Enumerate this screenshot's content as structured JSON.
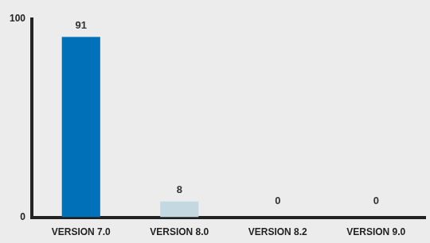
{
  "chart_data": {
    "type": "bar",
    "categories": [
      "VERSION 7.0",
      "VERSION 8.0",
      "VERSION 8.2",
      "VERSION 9.0"
    ],
    "values": [
      91,
      8,
      0,
      0
    ],
    "colors": [
      "#0070b8",
      "#c4d8e2",
      "#c4d8e2",
      "#c4d8e2"
    ],
    "ylim": [
      0,
      100
    ],
    "yticks": [
      0,
      100
    ],
    "grid": false,
    "data_labels": true
  }
}
